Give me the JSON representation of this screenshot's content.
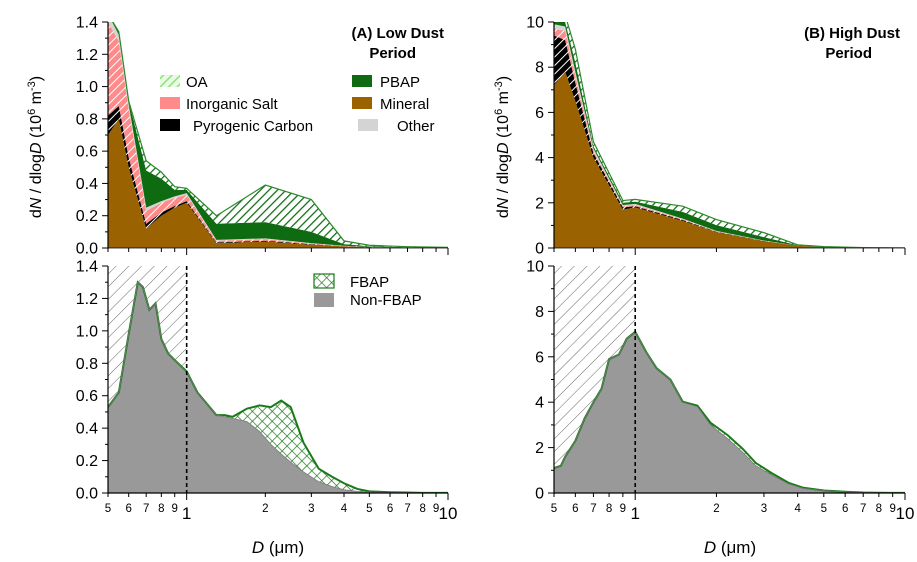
{
  "figure": {
    "y_axis_label_prefix": "d",
    "y_axis_label_N": "N",
    "y_axis_label_mid": " / dlog",
    "y_axis_label_D": "D",
    "y_axis_label_unit_open": " (10",
    "y_axis_label_unit_exp1": "6",
    "y_axis_label_unit_m": " m",
    "y_axis_label_unit_exp2": "-3",
    "y_axis_label_unit_close": ")",
    "x_axis_label_D": "D",
    "x_axis_label_unit": " (μm)"
  },
  "colors": {
    "OA": "#b8f0b0",
    "InorganicSalt": "#ff8a8a",
    "PyrogenicCarbon": "#000000",
    "PBAP": "#0f6b12",
    "Mineral": "#9a6200",
    "Other": "#d4d4d4",
    "NonFBAP": "#999999",
    "FBAP": "#1a7a1a",
    "hatch": "#555555"
  },
  "chart_data": [
    {
      "id": "A_top",
      "type": "area",
      "title": "(A) Low Dust Period",
      "title_line1": "(A) Low Dust",
      "title_line2": "Period",
      "x_scale": "log",
      "xlim": [
        0.5,
        10
      ],
      "ylim": [
        0,
        1.4
      ],
      "y_ticks": [
        "0.0",
        "0.2",
        "0.4",
        "0.6",
        "0.8",
        "1.0",
        "1.2",
        "1.4"
      ],
      "legend": [
        {
          "name": "OA",
          "key": "OA",
          "style": "hatch-light"
        },
        {
          "name": "PBAP",
          "key": "PBAP",
          "style": "solid"
        },
        {
          "name": "Inorganic Salt",
          "key": "InorganicSalt",
          "style": "solid"
        },
        {
          "name": "Mineral",
          "key": "Mineral",
          "style": "solid"
        },
        {
          "name": "Pyrogenic Carbon",
          "key": "PyrogenicCarbon",
          "style": "solid"
        },
        {
          "name": "Other",
          "key": "Other",
          "style": "solid"
        }
      ],
      "x": [
        0.5,
        0.55,
        0.6,
        0.7,
        0.8,
        0.9,
        1.0,
        1.3,
        2.0,
        3.0,
        4.0,
        5.0,
        7.0,
        10.0
      ],
      "series": [
        {
          "name": "Mineral",
          "values": [
            0.7,
            0.8,
            0.5,
            0.12,
            0.2,
            0.25,
            0.28,
            0.03,
            0.04,
            0.02,
            0.01,
            0.005,
            0.003,
            0.002
          ]
        },
        {
          "name": "Pyrogenic Carbon",
          "values": [
            0.12,
            0.08,
            0.06,
            0.03,
            0.02,
            0.01,
            0.01,
            0.005,
            0.005,
            0.003,
            0.001,
            0.001,
            0.0,
            0.0
          ]
        },
        {
          "name": "Inorganic Salt",
          "values": [
            0.58,
            0.4,
            0.3,
            0.08,
            0.06,
            0.05,
            0.04,
            0.01,
            0.01,
            0.005,
            0.002,
            0.001,
            0.0,
            0.0
          ]
        },
        {
          "name": "Other",
          "values": [
            0.05,
            0.04,
            0.03,
            0.02,
            0.01,
            0.01,
            0.01,
            0.005,
            0.005,
            0.002,
            0.001,
            0.0,
            0.0,
            0.0
          ]
        },
        {
          "name": "PBAP",
          "values": [
            0.0,
            0.02,
            0.02,
            0.23,
            0.14,
            0.04,
            0.02,
            0.1,
            0.1,
            0.07,
            0.01,
            0.004,
            0.002,
            0.001
          ]
        },
        {
          "name": "OA",
          "values": [
            0.0,
            0.0,
            0.0,
            0.06,
            0.04,
            0.02,
            0.01,
            0.05,
            0.23,
            0.2,
            0.02,
            0.006,
            0.003,
            0.001
          ]
        }
      ]
    },
    {
      "id": "A_bottom",
      "type": "area",
      "x_scale": "log",
      "xlim": [
        0.5,
        10
      ],
      "ylim": [
        0,
        1.4
      ],
      "y_ticks": [
        "0.0",
        "0.2",
        "0.4",
        "0.6",
        "0.8",
        "1.0",
        "1.2",
        "1.4"
      ],
      "x_tick_labels": [
        "5",
        "6",
        "7",
        "8",
        "9",
        "1",
        "2",
        "3",
        "4",
        "5",
        "6",
        "7",
        "8",
        "9",
        "10"
      ],
      "cutoff_x": 1.0,
      "legend": [
        {
          "name": "FBAP",
          "key": "FBAP",
          "style": "crosshatch"
        },
        {
          "name": "Non-FBAP",
          "key": "NonFBAP",
          "style": "solid"
        }
      ],
      "x": [
        0.5,
        0.55,
        0.6,
        0.65,
        0.68,
        0.72,
        0.76,
        0.8,
        0.85,
        0.9,
        1.0,
        1.1,
        1.3,
        1.4,
        1.5,
        1.7,
        1.9,
        2.1,
        2.3,
        2.5,
        2.8,
        3.2,
        3.6,
        4.0,
        4.5,
        5.0,
        6.0,
        7.0,
        8.0,
        10.0
      ],
      "series": [
        {
          "name": "Non-FBAP",
          "values": [
            0.53,
            0.62,
            0.98,
            1.3,
            1.27,
            1.13,
            1.17,
            0.95,
            0.86,
            0.82,
            0.75,
            0.62,
            0.48,
            0.47,
            0.46,
            0.44,
            0.38,
            0.3,
            0.24,
            0.19,
            0.13,
            0.07,
            0.04,
            0.02,
            0.01,
            0.005,
            0.003,
            0.002,
            0.001,
            0.001
          ]
        },
        {
          "name": "FBAP",
          "values": [
            0.0,
            0.0,
            0.0,
            0.0,
            0.0,
            0.0,
            0.0,
            0.0,
            0.0,
            0.0,
            0.0,
            0.0,
            0.0,
            0.01,
            0.01,
            0.08,
            0.16,
            0.23,
            0.33,
            0.34,
            0.18,
            0.08,
            0.06,
            0.04,
            0.015,
            0.005,
            0.002,
            0.001,
            0.0,
            0.0
          ]
        }
      ]
    },
    {
      "id": "B_top",
      "type": "area",
      "title": "(B) High Dust Period",
      "title_line1": "(B) High Dust",
      "title_line2": "Period",
      "x_scale": "log",
      "xlim": [
        0.5,
        10
      ],
      "ylim": [
        0,
        10
      ],
      "y_ticks": [
        "0",
        "2",
        "4",
        "6",
        "8",
        "10"
      ],
      "x": [
        0.5,
        0.55,
        0.6,
        0.7,
        0.9,
        1.0,
        1.5,
        2.0,
        3.0,
        4.0,
        5.0,
        7.0,
        10.0
      ],
      "series": [
        {
          "name": "Mineral",
          "values": [
            7.2,
            7.8,
            6.5,
            4.0,
            1.7,
            1.8,
            1.2,
            0.7,
            0.3,
            0.1,
            0.04,
            0.01,
            0.005
          ]
        },
        {
          "name": "Pyrogenic Carbon",
          "values": [
            2.2,
            1.4,
            0.8,
            0.2,
            0.1,
            0.05,
            0.04,
            0.02,
            0.01,
            0.0,
            0.0,
            0.0,
            0.0
          ]
        },
        {
          "name": "Inorganic Salt",
          "values": [
            0.3,
            0.4,
            0.3,
            0.1,
            0.05,
            0.05,
            0.03,
            0.02,
            0.01,
            0.0,
            0.0,
            0.0,
            0.0
          ]
        },
        {
          "name": "Other",
          "values": [
            0.2,
            0.2,
            0.2,
            0.1,
            0.05,
            0.05,
            0.03,
            0.02,
            0.01,
            0.0,
            0.0,
            0.0,
            0.0
          ]
        },
        {
          "name": "PBAP",
          "values": [
            0.1,
            0.2,
            0.4,
            0.1,
            0.1,
            0.1,
            0.3,
            0.25,
            0.15,
            0.02,
            0.01,
            0.005,
            0.0
          ]
        },
        {
          "name": "OA",
          "values": [
            0.1,
            0.3,
            0.6,
            0.2,
            0.1,
            0.1,
            0.25,
            0.25,
            0.2,
            0.02,
            0.01,
            0.005,
            0.0
          ]
        }
      ]
    },
    {
      "id": "B_bottom",
      "type": "area",
      "x_scale": "log",
      "xlim": [
        0.5,
        10
      ],
      "ylim": [
        0,
        10
      ],
      "y_ticks": [
        "0",
        "2",
        "4",
        "6",
        "8",
        "10"
      ],
      "x_tick_labels": [
        "5",
        "6",
        "7",
        "8",
        "9",
        "1",
        "2",
        "3",
        "4",
        "5",
        "6",
        "7",
        "8",
        "9",
        "10"
      ],
      "cutoff_x": 1.0,
      "x": [
        0.5,
        0.53,
        0.55,
        0.6,
        0.65,
        0.7,
        0.75,
        0.8,
        0.87,
        0.93,
        1.0,
        1.1,
        1.2,
        1.35,
        1.5,
        1.7,
        1.9,
        2.2,
        2.5,
        2.8,
        3.2,
        3.7,
        4.2,
        5.0,
        6.0,
        7.0,
        8.0,
        10.0
      ],
      "series": [
        {
          "name": "Non-FBAP",
          "values": [
            1.1,
            1.2,
            1.6,
            2.3,
            3.3,
            4.0,
            4.6,
            5.9,
            6.1,
            6.8,
            7.1,
            6.2,
            5.5,
            5.0,
            4.0,
            3.8,
            3.0,
            2.4,
            1.8,
            1.2,
            0.8,
            0.4,
            0.2,
            0.1,
            0.05,
            0.02,
            0.01,
            0.005
          ]
        },
        {
          "name": "FBAP",
          "values": [
            0.0,
            0.0,
            0.0,
            0.0,
            0.0,
            0.0,
            0.0,
            0.0,
            0.0,
            0.0,
            0.0,
            0.0,
            0.0,
            0.0,
            0.02,
            0.05,
            0.1,
            0.15,
            0.15,
            0.12,
            0.08,
            0.05,
            0.03,
            0.01,
            0.005,
            0.0,
            0.0,
            0.0
          ]
        }
      ]
    }
  ]
}
